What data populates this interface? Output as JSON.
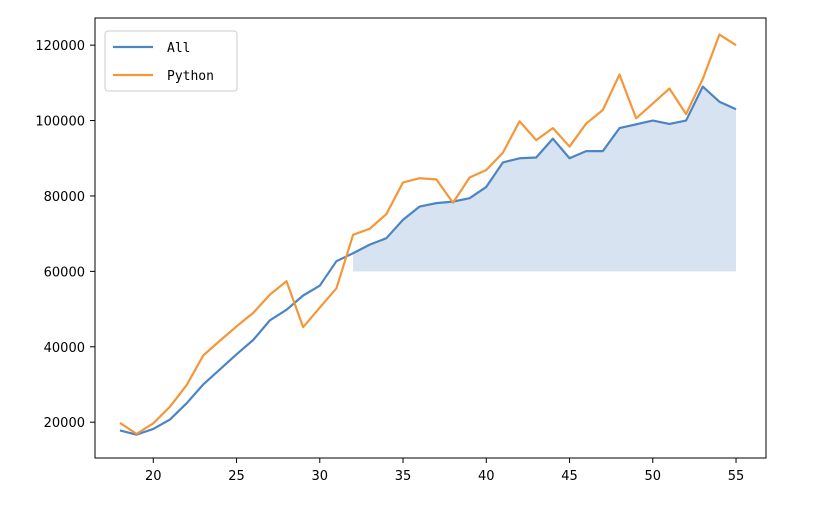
{
  "chart_data": {
    "type": "line",
    "x": [
      18,
      19,
      20,
      21,
      22,
      23,
      24,
      25,
      26,
      27,
      28,
      29,
      30,
      31,
      32,
      33,
      34,
      35,
      36,
      37,
      38,
      39,
      40,
      41,
      42,
      43,
      44,
      45,
      46,
      47,
      48,
      49,
      50,
      51,
      52,
      53,
      54,
      55
    ],
    "series": [
      {
        "name": "All",
        "color": "#4c84c4",
        "values": [
          17800,
          16700,
          18200,
          20700,
          25000,
          30000,
          34000,
          38000,
          41800,
          47000,
          49800,
          53600,
          56200,
          62700,
          64800,
          67100,
          68800,
          73700,
          77200,
          78100,
          78500,
          79400,
          82400,
          88900,
          90000,
          90200,
          95200,
          90000,
          91900,
          91900,
          98000,
          99000,
          100000,
          99100,
          100000,
          109000,
          105000,
          103000
        ]
      },
      {
        "name": "Python",
        "color": "#f59638",
        "values": [
          19800,
          16900,
          19700,
          24100,
          29800,
          37700,
          41600,
          45400,
          49000,
          53800,
          57400,
          45200,
          50400,
          55500,
          69700,
          71300,
          75200,
          83600,
          84700,
          84400,
          78200,
          84900,
          86900,
          91500,
          99800,
          94800,
          98000,
          93100,
          99200,
          102800,
          112200,
          100600,
          104500,
          108500,
          101700,
          111000,
          122800,
          120000
        ]
      }
    ],
    "fill": {
      "from_x": 32,
      "to_x": 55,
      "upper_series": "All",
      "baseline": 60000,
      "color": "#d7e3f0"
    },
    "xlim": [
      16.5,
      56.8
    ],
    "ylim": [
      10500,
      127200
    ],
    "xticks": [
      20,
      25,
      30,
      35,
      40,
      45,
      50,
      55
    ],
    "yticks": [
      20000,
      40000,
      60000,
      80000,
      100000,
      120000
    ],
    "legend": {
      "position": "top-left",
      "entries": [
        "All",
        "Python"
      ]
    },
    "grid": false,
    "title": "",
    "xlabel": "",
    "ylabel": ""
  }
}
